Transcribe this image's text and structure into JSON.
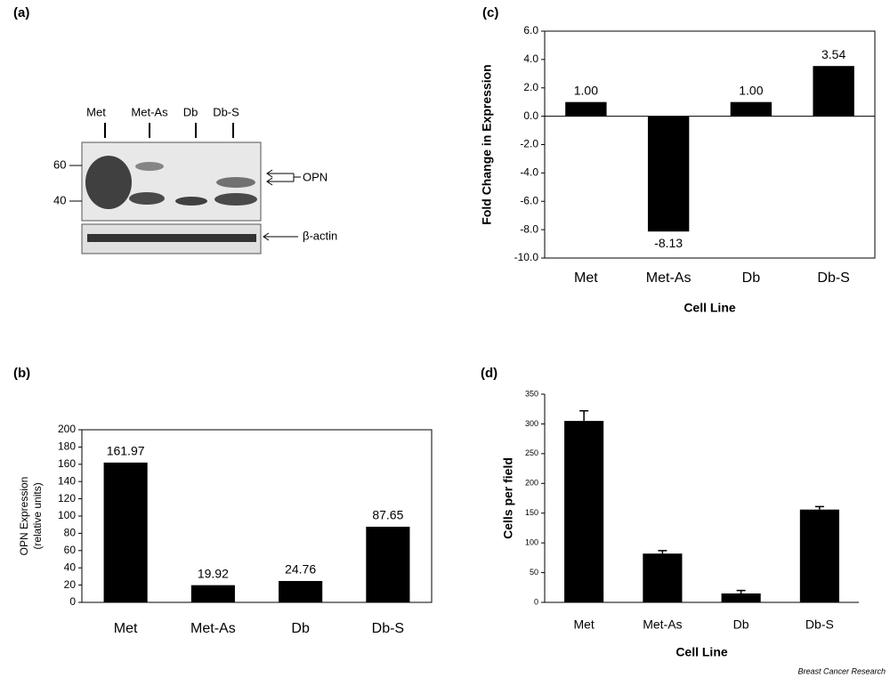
{
  "blot": {
    "label": "(a)",
    "lanes": [
      "Met",
      "Met-As",
      "Db",
      "Db-S"
    ],
    "markers": [
      "60",
      "40"
    ],
    "bands": [
      "OPN",
      "β-actin"
    ]
  },
  "chart_data": [
    {
      "type": "bar",
      "label": "(c)",
      "ylabel": "Fold Change in Expression",
      "xlabel": "Cell Line",
      "categories": [
        "Met",
        "Met-As",
        "Db",
        "Db-S"
      ],
      "values": [
        1.0,
        -8.13,
        1.0,
        3.54
      ],
      "value_labels": [
        "1.00",
        "-8.13",
        "1.00",
        "3.54"
      ],
      "color": "#000000",
      "ylim": [
        -10,
        6
      ],
      "yticks": [
        {
          "value": -10,
          "label": "-10.0"
        },
        {
          "value": -8,
          "label": "-8.0"
        },
        {
          "value": -6,
          "label": "-6.0"
        },
        {
          "value": -4,
          "label": "-4.0"
        },
        {
          "value": -2,
          "label": "-2.0"
        },
        {
          "value": 0,
          "label": "0.0"
        },
        {
          "value": 2,
          "label": "2.0"
        },
        {
          "value": 4,
          "label": "4.0"
        },
        {
          "value": 6,
          "label": "6.0"
        }
      ]
    },
    {
      "type": "bar",
      "label": "(b)",
      "ylabel": [
        "OPN Expression",
        "(relative units)"
      ],
      "categories": [
        "Met",
        "Met-As",
        "Db",
        "Db-S"
      ],
      "values": [
        161.97,
        19.92,
        24.76,
        87.65
      ],
      "value_labels": [
        "161.97",
        "19.92",
        "24.76",
        "87.65"
      ],
      "color": "#000000",
      "ylim": [
        0,
        200
      ],
      "yticks": [
        0,
        20,
        40,
        60,
        80,
        100,
        120,
        140,
        160,
        180,
        200
      ]
    },
    {
      "type": "bar",
      "label": "(d)",
      "ylabel": "Cells per field",
      "xlabel": "Cell Line",
      "categories": [
        "Met",
        "Met-As",
        "Db",
        "Db-S"
      ],
      "values": [
        305,
        82,
        15,
        156
      ],
      "errors": [
        17,
        5,
        5,
        5
      ],
      "color": "#000000",
      "ylim": [
        0,
        350
      ],
      "yticks": [
        0,
        50,
        100,
        150,
        200,
        250,
        300,
        350
      ]
    }
  ],
  "credit": "Breast Cancer Research"
}
